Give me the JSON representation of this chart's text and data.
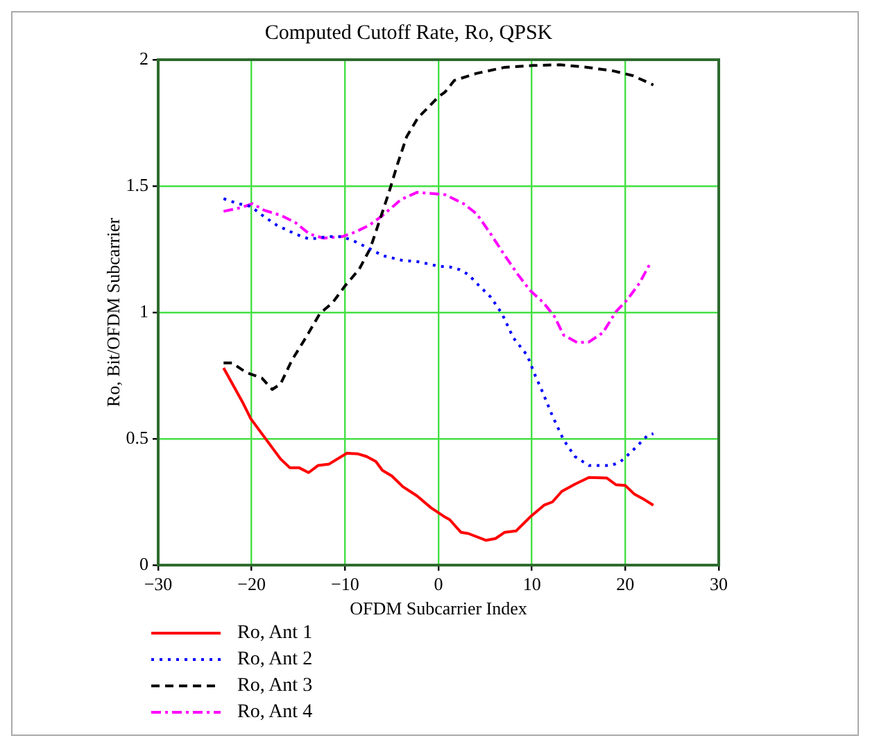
{
  "chart_data": {
    "type": "line",
    "title": "Computed Cutoff Rate, Ro, QPSK",
    "xlabel": "OFDM Subcarrier Index",
    "ylabel": "Ro, Bit/OFDM Subcarrier",
    "xlim": [
      -30,
      30
    ],
    "xticks": [
      {
        "value": -30,
        "label": "−30"
      },
      {
        "value": -20,
        "label": "−20"
      },
      {
        "value": -10,
        "label": "−10"
      },
      0,
      10,
      20,
      30
    ],
    "ylim": [
      0,
      2
    ],
    "yticks": [
      0,
      0.5,
      1,
      1.5,
      2
    ],
    "grid": true,
    "legend": "bottom left",
    "marker": "none",
    "series": [
      {
        "name": "Ro, Ant 1",
        "color": "#ff0000",
        "line_style": "solid",
        "x": [
          -23,
          -20.9,
          -20.1,
          -18.7,
          -16.9,
          -15.9,
          -14.9,
          -13.9,
          -12.9,
          -11.7,
          -9.8,
          -8.6,
          -7.7,
          -6.7,
          -6,
          -5,
          -3.8,
          -2.3,
          -0.8,
          0.7,
          1.2,
          2.4,
          3.2,
          5.1,
          6.1,
          7.1,
          8.3,
          9.8,
          11.3,
          12.2,
          13.2,
          14.6,
          16.1,
          18,
          19,
          20,
          21,
          22,
          23
        ],
        "values": [
          0.78,
          0.64,
          0.58,
          0.51,
          0.42,
          0.385,
          0.385,
          0.366,
          0.394,
          0.4,
          0.443,
          0.44,
          0.43,
          0.41,
          0.375,
          0.353,
          0.31,
          0.274,
          0.227,
          0.19,
          0.18,
          0.13,
          0.125,
          0.098,
          0.105,
          0.13,
          0.135,
          0.19,
          0.237,
          0.25,
          0.292,
          0.32,
          0.347,
          0.345,
          0.318,
          0.315,
          0.28,
          0.26,
          0.237
        ]
      },
      {
        "name": "Ro, Ant 2",
        "color": "#0000ff",
        "line_style": "dotted",
        "x": [
          -23,
          -21.4,
          -20.1,
          -18.7,
          -17.3,
          -15.3,
          -13.8,
          -11.8,
          -10.3,
          -8.9,
          -7.4,
          -6,
          -4,
          -2.1,
          0,
          1.2,
          2.2,
          3.2,
          4.1,
          5.6,
          6.8,
          8,
          9.5,
          10.3,
          11.2,
          12.2,
          13.4,
          14.6,
          16.1,
          18.5,
          19.5,
          20.7,
          22.4,
          23
        ],
        "values": [
          1.45,
          1.43,
          1.42,
          1.38,
          1.345,
          1.31,
          1.29,
          1.3,
          1.3,
          1.28,
          1.253,
          1.225,
          1.207,
          1.2,
          1.183,
          1.18,
          1.17,
          1.15,
          1.115,
          1.06,
          0.995,
          0.9,
          0.83,
          0.755,
          0.68,
          0.59,
          0.495,
          0.43,
          0.394,
          0.394,
          0.41,
          0.45,
          0.514,
          0.52
        ]
      },
      {
        "name": "Ro, Ant 3",
        "color": "#000000",
        "line_style": "dashed",
        "x": [
          -23,
          -22.1,
          -20.6,
          -18.9,
          -17.8,
          -16.9,
          -15.7,
          -14.2,
          -12.7,
          -11.3,
          -10,
          -8.5,
          -7.3,
          -6.3,
          -5.3,
          -4.4,
          -3.4,
          -2.2,
          0,
          0.7,
          1.7,
          4.1,
          7.1,
          10,
          13,
          15.9,
          18.8,
          20.8,
          23
        ],
        "values": [
          0.8,
          0.8,
          0.763,
          0.74,
          0.695,
          0.717,
          0.81,
          0.9,
          0.995,
          1.04,
          1.105,
          1.17,
          1.253,
          1.364,
          1.475,
          1.585,
          1.696,
          1.77,
          1.853,
          1.872,
          1.918,
          1.946,
          1.97,
          1.977,
          1.98,
          1.97,
          1.955,
          1.937,
          1.9
        ]
      },
      {
        "name": "Ro, Ant 4",
        "color": "#ff00ff",
        "line_style": "dashdot",
        "x": [
          -23,
          -21.1,
          -19.9,
          -18.7,
          -16.8,
          -15.3,
          -13.8,
          -12.3,
          -10.3,
          -8.9,
          -7.4,
          -6,
          -4,
          -2.3,
          -0.5,
          0.7,
          2.7,
          4.1,
          5.6,
          7.1,
          8.5,
          9.8,
          11.2,
          12.4,
          13.4,
          14.9,
          16.1,
          17.6,
          19,
          20.2,
          21.5,
          22.7
        ],
        "values": [
          1.4,
          1.415,
          1.43,
          1.405,
          1.383,
          1.355,
          1.31,
          1.294,
          1.3,
          1.318,
          1.345,
          1.383,
          1.447,
          1.475,
          1.47,
          1.466,
          1.43,
          1.39,
          1.31,
          1.225,
          1.15,
          1.087,
          1.04,
          0.985,
          0.91,
          0.88,
          0.883,
          0.92,
          1.003,
          1.05,
          1.115,
          1.197
        ]
      }
    ]
  }
}
